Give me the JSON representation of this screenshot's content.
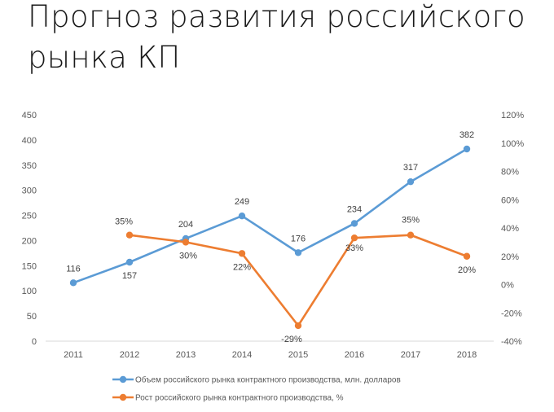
{
  "slide": {
    "title": "Прогноз развития российского рынка КП"
  },
  "chart_data": {
    "type": "line",
    "title": "",
    "x": [
      "2011",
      "2012",
      "2013",
      "2014",
      "2015",
      "2016",
      "2017",
      "2018"
    ],
    "y_left": {
      "min": 0,
      "max": 450,
      "step": 50,
      "ticks": [
        "0",
        "50",
        "100",
        "150",
        "200",
        "250",
        "300",
        "350",
        "400",
        "450"
      ]
    },
    "y_right": {
      "min": -40,
      "max": 120,
      "step": 20,
      "ticks": [
        "-40%",
        "-20%",
        "0%",
        "20%",
        "40%",
        "60%",
        "80%",
        "100%",
        "120%"
      ]
    },
    "grid": false,
    "legend_position": "bottom",
    "series": [
      {
        "name": "Объем российского рынка контрактного производства, млн. долларов",
        "axis": "left",
        "color": "#5b9bd5",
        "values": [
          116,
          157,
          204,
          249,
          176,
          234,
          317,
          382
        ],
        "labels": [
          "116",
          "157",
          "204",
          "249",
          "176",
          "234",
          "317",
          "382"
        ]
      },
      {
        "name": "Рост российского рынка контрактного производства, %",
        "axis": "right",
        "color": "#ed7d31",
        "values": [
          null,
          35,
          30,
          22,
          -29,
          33,
          35,
          20
        ],
        "labels": [
          null,
          "35%",
          "30%",
          "22%",
          "-29%",
          "33%",
          "35%",
          "20%"
        ]
      }
    ]
  }
}
